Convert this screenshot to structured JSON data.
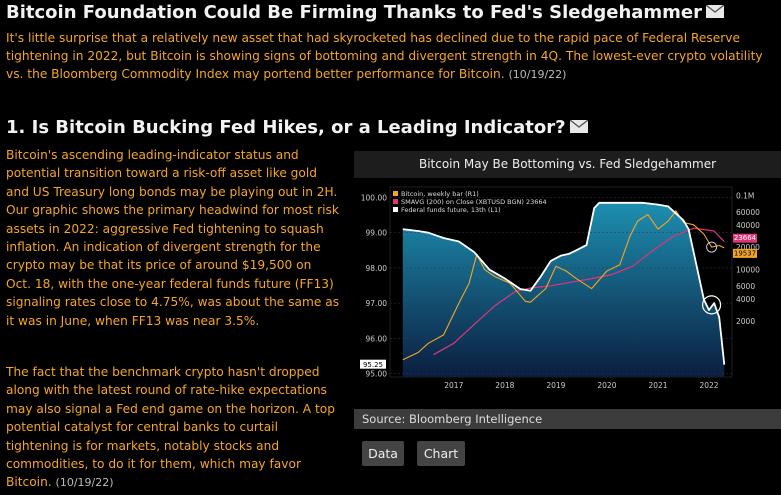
{
  "article": {
    "title": "Bitcoin Foundation Could Be Firming Thanks to Fed's Sledgehammer",
    "intro": "It's little surprise that a relatively new asset that had skyrocketed has declined due to the rapid pace of Federal Reserve tightening in 2022, but Bitcoin is showing signs of bottoming and divergent strength in 4Q. The lowest-ever crypto volatility vs. the Bloomberg Commodity Index may portend better performance for Bitcoin.",
    "intro_date": "(10/19/22)"
  },
  "section": {
    "title": "1. Is Bitcoin Bucking Fed Hikes, or a Leading Indicator?",
    "paragraph1": "Bitcoin's ascending leading-indicator status and potential transition toward a risk-off asset like gold and US Treasury long bonds may be playing out in 2H. Our graphic shows the primary headwind for most risk assets in 2022: aggressive Fed tightening to squash inflation. An indication of divergent strength for the crypto may be that its price of around $19,500 on Oct. 18, with the one-year federal funds future (FF13) signaling rates close to 4.75%, was about the same as it was in June, when FF13 was near 3.5%.",
    "paragraph2": "The fact that the benchmark crypto hasn't dropped along with the latest round of rate-hike expectations may also signal a Fed end game on the horizon. A top potential catalyst for central banks to curtail tightening is for markets, notably stocks and commodities, to do it for them, which may favor Bitcoin.",
    "paragraph2_date": "(10/19/22)"
  },
  "chart_panel": {
    "source": "Source: Bloomberg Intelligence",
    "data_button": "Data",
    "chart_button": "Chart"
  },
  "chart_data": {
    "type": "line",
    "title": "Bitcoin May Be Bottoming vs. Fed Sledgehammer",
    "x_ticks": [
      "2017",
      "2018",
      "2019",
      "2020",
      "2021",
      "2022"
    ],
    "left_axis_ticks": [
      "100.00",
      "99.00",
      "98.00",
      "97.00",
      "96.00",
      "95.00"
    ],
    "right_axis_ticks": [
      "0.1M",
      "60000",
      "40000",
      "20000",
      "10000",
      "6000",
      "4000",
      "2000"
    ],
    "left_axis_range": [
      94.9,
      100.3
    ],
    "left_marker_label": "95.25",
    "right_marker_labels": [
      "23664",
      "19537"
    ],
    "right_axis_scale": "log",
    "legend_position": "top-left",
    "legend": [
      {
        "name": "Bitcoin, weekly bar (R1)",
        "color": "#f5a623"
      },
      {
        "name": "SMAVG (200) on Close (XBTUSD BGN) 23664",
        "color": "#e0347a"
      },
      {
        "name": "Federal funds future, 13th (L1)",
        "color": "#ffffff"
      }
    ],
    "series": [
      {
        "name": "Federal funds future, 13th (L1)",
        "x": [
          2016.5,
          2016.8,
          2017.0,
          2017.3,
          2017.6,
          2017.9,
          2018.2,
          2018.5,
          2018.8,
          2019.0,
          2019.2,
          2019.4,
          2019.6,
          2019.75,
          2019.9,
          2020.1,
          2020.25,
          2020.35,
          2020.6,
          2020.9,
          2021.2,
          2021.5,
          2021.7,
          2021.85,
          2022.0,
          2022.1,
          2022.25,
          2022.4,
          2022.5,
          2022.6,
          2022.7,
          2022.8
        ],
        "values": [
          99.1,
          99.05,
          99.0,
          98.85,
          98.75,
          98.45,
          97.95,
          97.7,
          97.4,
          97.35,
          97.75,
          98.2,
          98.35,
          98.4,
          98.5,
          98.65,
          99.7,
          99.85,
          99.85,
          99.85,
          99.85,
          99.8,
          99.75,
          99.55,
          99.35,
          99.1,
          98.1,
          97.1,
          96.8,
          97.0,
          96.6,
          95.25
        ]
      },
      {
        "name": "Bitcoin, weekly bar (R1)",
        "x": [
          2016.5,
          2016.8,
          2017.0,
          2017.3,
          2017.6,
          2017.8,
          2017.95,
          2018.1,
          2018.3,
          2018.6,
          2018.9,
          2019.0,
          2019.3,
          2019.5,
          2019.7,
          2019.9,
          2020.2,
          2020.5,
          2020.75,
          2020.95,
          2021.1,
          2021.3,
          2021.5,
          2021.7,
          2021.85,
          2022.0,
          2022.2,
          2022.4,
          2022.55,
          2022.7,
          2022.8
        ],
        "values": [
          600,
          750,
          1000,
          1300,
          3500,
          6500,
          16000,
          10000,
          8000,
          6500,
          3700,
          3600,
          5500,
          11000,
          9500,
          7500,
          5500,
          9500,
          11500,
          28000,
          45000,
          55000,
          35000,
          45000,
          62000,
          43000,
          40000,
          30000,
          20000,
          21000,
          19537
        ]
      },
      {
        "name": "SMAVG (200) on Close (XBTUSD BGN) 23664",
        "x": [
          2017.1,
          2017.5,
          2017.9,
          2018.3,
          2018.7,
          2019.0,
          2019.4,
          2019.8,
          2020.2,
          2020.6,
          2021.0,
          2021.4,
          2021.8,
          2022.2,
          2022.6,
          2022.8
        ],
        "values": [
          700,
          1000,
          1800,
          3200,
          5000,
          5600,
          6000,
          6700,
          7500,
          8500,
          11000,
          18000,
          28000,
          36000,
          33000,
          23664
        ]
      }
    ]
  }
}
